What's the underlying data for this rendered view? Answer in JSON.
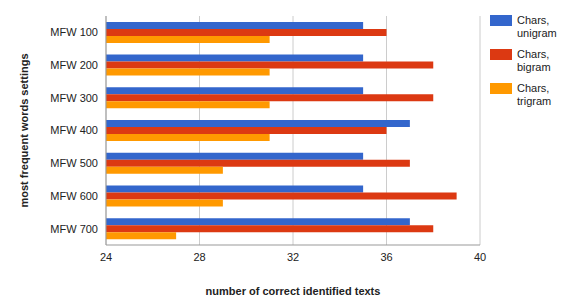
{
  "chart_data": {
    "type": "bar",
    "orientation": "horizontal",
    "x_label": "number of correct identified texts",
    "y_label": "most frequent words settings",
    "categories": [
      "MFW 100",
      "MFW 200",
      "MFW 300",
      "MFW 400",
      "MFW 500",
      "MFW 600",
      "MFW 700"
    ],
    "series": [
      {
        "name": "Chars, unigram",
        "color": "#3366cc",
        "values": [
          35,
          35,
          35,
          37,
          35,
          35,
          37
        ]
      },
      {
        "name": "Chars, bigram",
        "color": "#dc3912",
        "values": [
          36,
          38,
          38,
          36,
          37,
          39,
          38
        ]
      },
      {
        "name": "Chars, trigram",
        "color": "#ff9900",
        "values": [
          31,
          31,
          31,
          31,
          29,
          29,
          27
        ]
      }
    ],
    "xlim": [
      24,
      40
    ],
    "xticks": [
      24,
      28,
      32,
      36,
      40
    ],
    "grid": true,
    "legend": "right"
  }
}
